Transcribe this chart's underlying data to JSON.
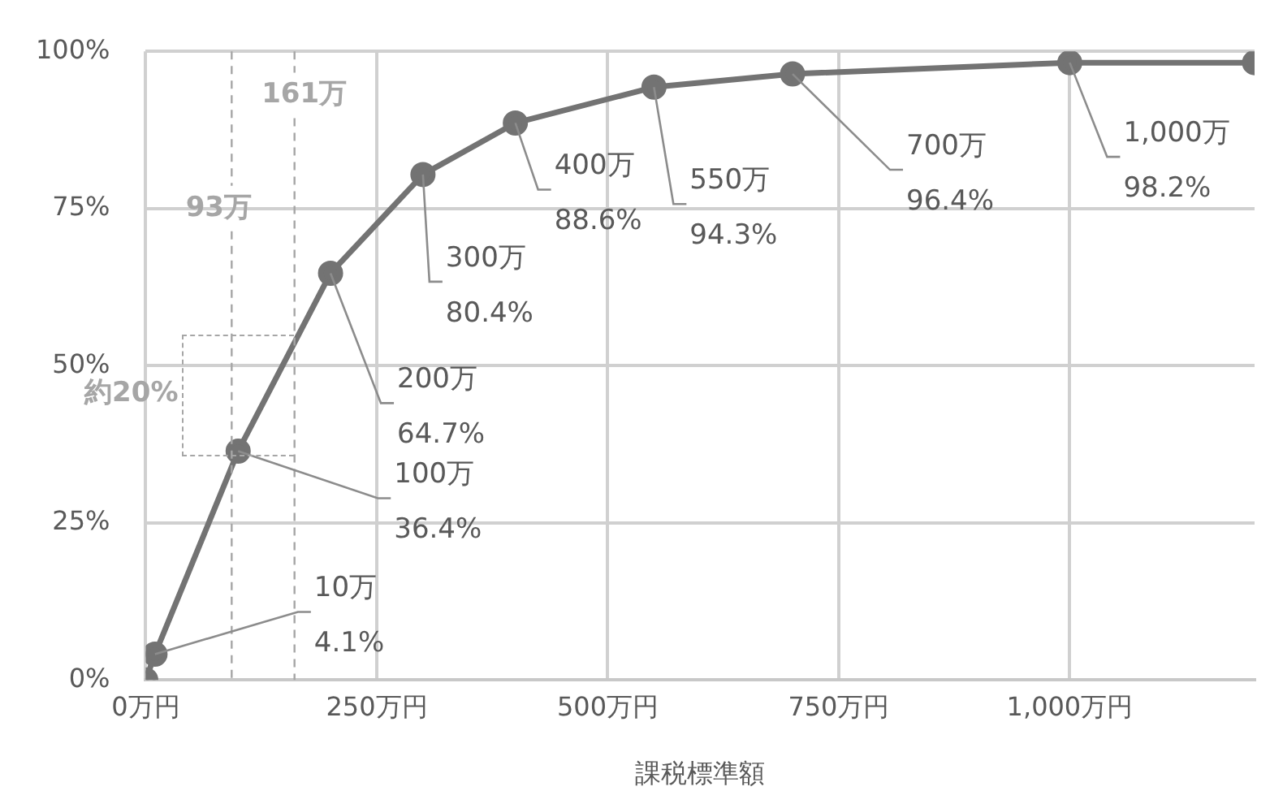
{
  "chart_data": {
    "type": "line",
    "xlabel": "課税標準額",
    "x": [
      0,
      10,
      100,
      200,
      300,
      400,
      550,
      700,
      1000,
      1200
    ],
    "values": [
      0,
      4.1,
      36.4,
      64.7,
      80.4,
      88.6,
      94.3,
      96.4,
      98.2,
      98.2
    ],
    "color": "#737373",
    "marker": "circle",
    "line_style": "solid",
    "xlim": [
      0,
      1200
    ],
    "ylim": [
      0,
      100
    ],
    "xticks": [
      {
        "value": 0,
        "label": "0万円"
      },
      {
        "value": 250,
        "label": "250万円"
      },
      {
        "value": 500,
        "label": "500万円"
      },
      {
        "value": 750,
        "label": "750万円"
      },
      {
        "value": 1000,
        "label": "1,000万円"
      }
    ],
    "yticks": [
      {
        "value": 0,
        "label": "0%"
      },
      {
        "value": 25,
        "label": "25%"
      },
      {
        "value": 50,
        "label": "50%"
      },
      {
        "value": 75,
        "label": "75%"
      },
      {
        "value": 100,
        "label": "100%"
      }
    ],
    "grid": true,
    "legend": false,
    "ref_lines": [
      {
        "axis": "x",
        "value": 93,
        "label": "93万",
        "line_style": "dashed",
        "color": "#a6a6a6"
      },
      {
        "axis": "x",
        "value": 161,
        "label": "161万",
        "line_style": "dashed",
        "color": "#a6a6a6"
      }
    ],
    "annotations": [
      {
        "text": "10万",
        "x": 10,
        "y": 4.1
      },
      {
        "text": "4.1%",
        "x": 10,
        "y": 4.1
      },
      {
        "text": "100万",
        "x": 100,
        "y": 36.4
      },
      {
        "text": "36.4%",
        "x": 100,
        "y": 36.4
      },
      {
        "text": "200万",
        "x": 200,
        "y": 64.7
      },
      {
        "text": "64.7%",
        "x": 200,
        "y": 64.7
      },
      {
        "text": "300万",
        "x": 300,
        "y": 80.4
      },
      {
        "text": "80.4%",
        "x": 300,
        "y": 80.4
      },
      {
        "text": "400万",
        "x": 400,
        "y": 88.6
      },
      {
        "text": "88.6%",
        "x": 400,
        "y": 88.6
      },
      {
        "text": "550万",
        "x": 550,
        "y": 94.3
      },
      {
        "text": "94.3%",
        "x": 550,
        "y": 94.3
      },
      {
        "text": "700万",
        "x": 700,
        "y": 96.4
      },
      {
        "text": "96.4%",
        "x": 700,
        "y": 96.4
      },
      {
        "text": "1,000万",
        "x": 1000,
        "y": 98.2
      },
      {
        "text": "98.2%",
        "x": 1000,
        "y": 98.2
      },
      "約20%"
    ]
  }
}
